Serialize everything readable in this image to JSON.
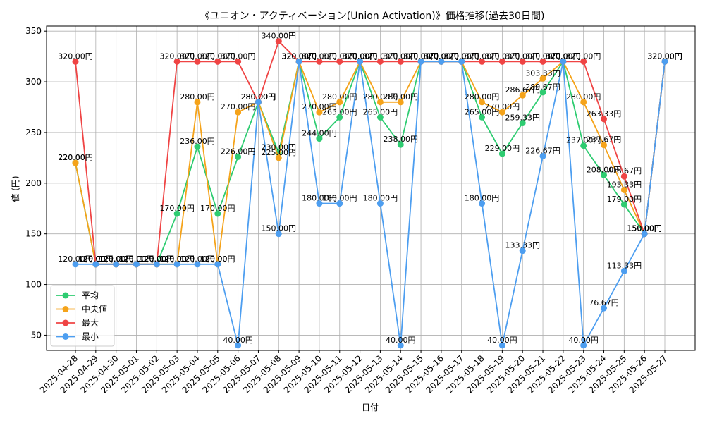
{
  "chart_data": {
    "type": "line",
    "title": "《ユニオン・アクティベーション(Union Activation)》価格推移(過去30日間)",
    "xlabel": "日付",
    "ylabel": "値 (円)",
    "ylim": [
      35,
      355
    ],
    "yticks": [
      50,
      100,
      150,
      200,
      250,
      300,
      350
    ],
    "grid": true,
    "legend_position": "lower-left",
    "value_suffix": "円",
    "categories": [
      "2025-04-28",
      "2025-04-29",
      "2025-04-30",
      "2025-05-01",
      "2025-05-02",
      "2025-05-03",
      "2025-05-04",
      "2025-05-05",
      "2025-05-06",
      "2025-05-07",
      "2025-05-08",
      "2025-05-09",
      "2025-05-10",
      "2025-05-11",
      "2025-05-12",
      "2025-05-13",
      "2025-05-14",
      "2025-05-15",
      "2025-05-16",
      "2025-05-17",
      "2025-05-18",
      "2025-05-19",
      "2025-05-20",
      "2025-05-21",
      "2025-05-22",
      "2025-05-23",
      "2025-05-24",
      "2025-05-25",
      "2025-05-26",
      "2025-05-27"
    ],
    "series": [
      {
        "name": "平均",
        "color": "#2ecc71",
        "values": [
          220,
          120,
          120,
          120,
          120,
          170,
          236,
          170,
          226,
          280,
          230,
          320,
          244,
          265,
          320,
          265,
          238,
          320,
          320,
          320,
          265,
          229,
          259.33,
          289.67,
          320,
          237,
          208,
          179,
          150,
          320
        ],
        "labels": [
          "220.00円",
          "120.00円",
          "120.00円",
          "120.00円",
          "120.00円",
          "170.00円",
          "236.00円",
          "170.00円",
          "226.00円",
          "280.00円",
          "230.00円",
          "320.00円",
          "244.00円",
          "265.00円",
          "320.00円",
          "265.00円",
          "238.00円",
          "320.00円",
          "320.00円",
          "320.00円",
          "265.00円",
          "229.00円",
          "259.33円",
          "289.67円",
          "320.00円",
          "237.00円",
          "208.00円",
          "179.00円",
          "150.00円",
          "320.00円"
        ]
      },
      {
        "name": "中央値",
        "color": "#f5a31a",
        "values": [
          220,
          120,
          120,
          120,
          120,
          120,
          280,
          120,
          270,
          280,
          225,
          320,
          270,
          280,
          320,
          280,
          280,
          320,
          320,
          320,
          280,
          270,
          286.67,
          303.33,
          320,
          280,
          237.67,
          193.33,
          150,
          320
        ],
        "labels": [
          "220.00円",
          "120.00円",
          "120.00円",
          "120.00円",
          "120.00円",
          "120.00円",
          "280.00円",
          "120.00円",
          "270.00円",
          "280.00円",
          "225.00円",
          "320.00円",
          "270.00円",
          "280.00円",
          "320.00円",
          "280.00円",
          "280.00円",
          "320.00円",
          "320.00円",
          "320.00円",
          "280.00円",
          "270.00円",
          "286.67円",
          "303.33円",
          "320.00円",
          "280.00円",
          "237.67円",
          "193.33円",
          "150.00円",
          "320.00円"
        ]
      },
      {
        "name": "最大",
        "color": "#ef4444",
        "values": [
          320,
          120,
          120,
          120,
          120,
          320,
          320,
          320,
          320,
          280,
          340,
          320,
          320,
          320,
          320,
          320,
          320,
          320,
          320,
          320,
          320,
          320,
          320,
          320,
          320,
          320,
          263.33,
          206.67,
          150,
          320
        ],
        "labels": [
          "320.00円",
          "120.00円",
          "120.00円",
          "120.00円",
          "120.00円",
          "320.00円",
          "320.00円",
          "320.00円",
          "320.00円",
          "280.00円",
          "340.00円",
          "320.00円",
          "320.00円",
          "320.00円",
          "320.00円",
          "320.00円",
          "320.00円",
          "320.00円",
          "320.00円",
          "320.00円",
          "320.00円",
          "320.00円",
          "320.00円",
          "320.00円",
          "320.00円",
          "320.00円",
          "263.33円",
          "206.67円",
          "150.00円",
          "320.00円"
        ]
      },
      {
        "name": "最小",
        "color": "#4d9ef0",
        "values": [
          120,
          120,
          120,
          120,
          120,
          120,
          120,
          120,
          40,
          280,
          150,
          320,
          180,
          180,
          320,
          180,
          40,
          320,
          320,
          320,
          180,
          40,
          133.33,
          226.67,
          320,
          40,
          76.67,
          113.33,
          150,
          320
        ],
        "labels": [
          "120.00円",
          "120.00円",
          "120.00円",
          "120.00円",
          "120.00円",
          "120.00円",
          "120.00円",
          "120.00円",
          "40.00円",
          "280.00円",
          "150.00円",
          "320.00円",
          "180.00円",
          "180.00円",
          "320.00円",
          "180.00円",
          "40.00円",
          "320.00円",
          "320.00円",
          "320.00円",
          "180.00円",
          "40.00円",
          "133.33円",
          "226.67円",
          "320.00円",
          "40.00円",
          "76.67円",
          "113.33円",
          "150.00円",
          "320.00円"
        ]
      }
    ]
  }
}
